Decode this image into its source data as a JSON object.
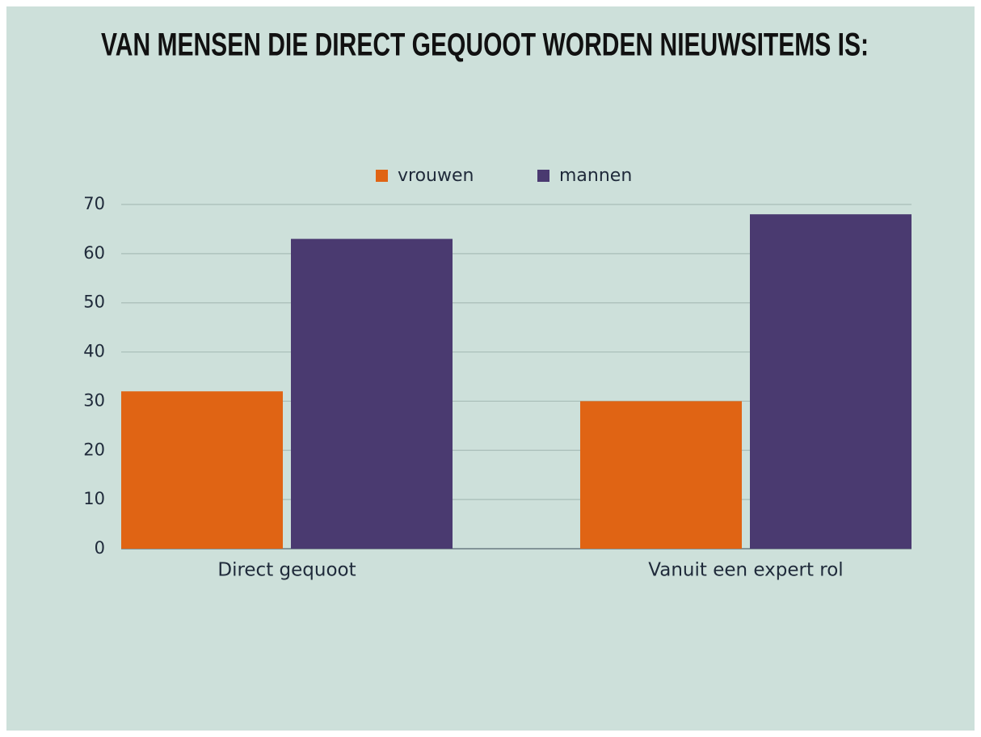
{
  "chart_data": {
    "type": "bar",
    "title": "VAN MENSEN DIE DIRECT GEQUOOT WORDEN NIEUWSITEMS IS:",
    "categories": [
      "Direct gequoot",
      "Vanuit een expert rol"
    ],
    "series": [
      {
        "name": "vrouwen",
        "color": "#e06414",
        "values": [
          32,
          30
        ]
      },
      {
        "name": "mannen",
        "color": "#4a3a70",
        "values": [
          63,
          68
        ]
      }
    ],
    "ylim": [
      0,
      70
    ],
    "yticks": [
      0,
      10,
      20,
      30,
      40,
      50,
      60,
      70
    ],
    "grid": true,
    "legend": "top"
  }
}
